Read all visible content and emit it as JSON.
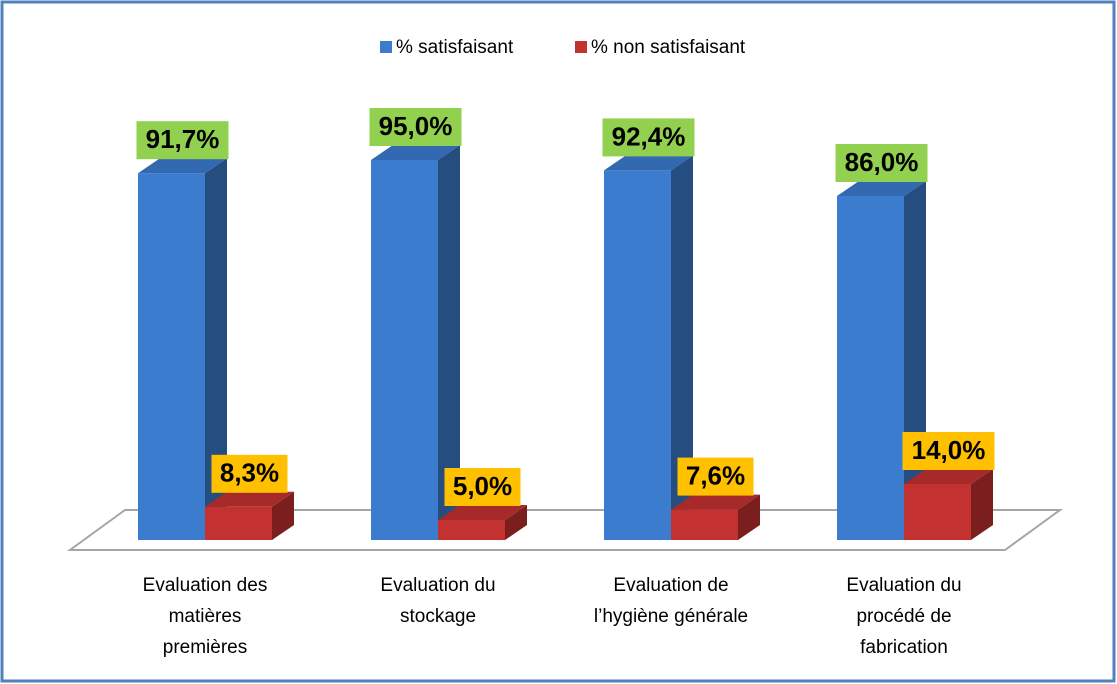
{
  "chart_data": {
    "type": "bar3d",
    "categories": [
      "Evaluation des\nmatières\npremières",
      "Evaluation du\nstockage",
      "Evaluation de\nl’hygiène générale",
      "Evaluation du\nprocédé de\nfabrication"
    ],
    "series": [
      {
        "name": "% satisfaisant",
        "color": "#3b7ccf",
        "values": [
          91.7,
          95.0,
          92.4,
          86.0
        ],
        "value_labels": [
          "91,7%",
          "95,0%",
          "92,4%",
          "86,0%"
        ],
        "label_color": "#92d050"
      },
      {
        "name": "% non satisfaisant",
        "color": "#c43131",
        "values": [
          8.3,
          5.0,
          7.6,
          14.0
        ],
        "value_labels": [
          "8,3%",
          "5,0%",
          "7,6%",
          "14,0%"
        ],
        "label_color": "#ffc000"
      }
    ],
    "ylim": [
      0,
      100
    ],
    "legend": "top"
  }
}
